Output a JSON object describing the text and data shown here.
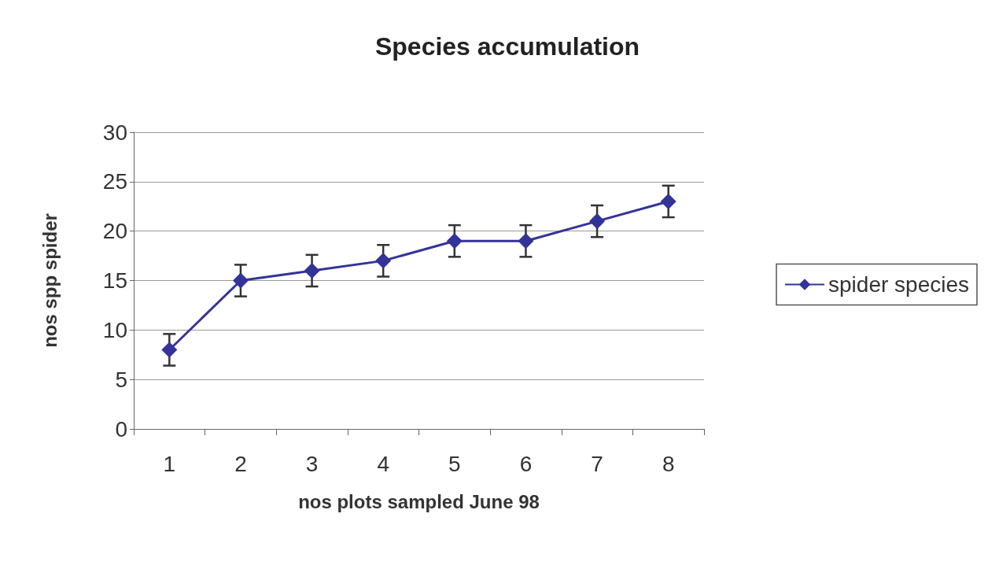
{
  "chart_data": {
    "type": "line",
    "title": "Species accumulation",
    "xlabel": "nos plots sampled June 98",
    "ylabel": "nos spp spider",
    "categories": [
      "1",
      "2",
      "3",
      "4",
      "5",
      "6",
      "7",
      "8"
    ],
    "series": [
      {
        "name": "spider species",
        "color": "#333399",
        "values": [
          8,
          15,
          16,
          17,
          19,
          19,
          21,
          23
        ],
        "errors": [
          1.6,
          1.6,
          1.6,
          1.6,
          1.6,
          1.6,
          1.6,
          1.6
        ]
      }
    ],
    "ylim": [
      0,
      30
    ],
    "yticks": [
      0,
      5,
      10,
      15,
      20,
      25,
      30
    ],
    "grid": "y",
    "legend": "right",
    "marker": "diamond",
    "line_style": "solid"
  }
}
